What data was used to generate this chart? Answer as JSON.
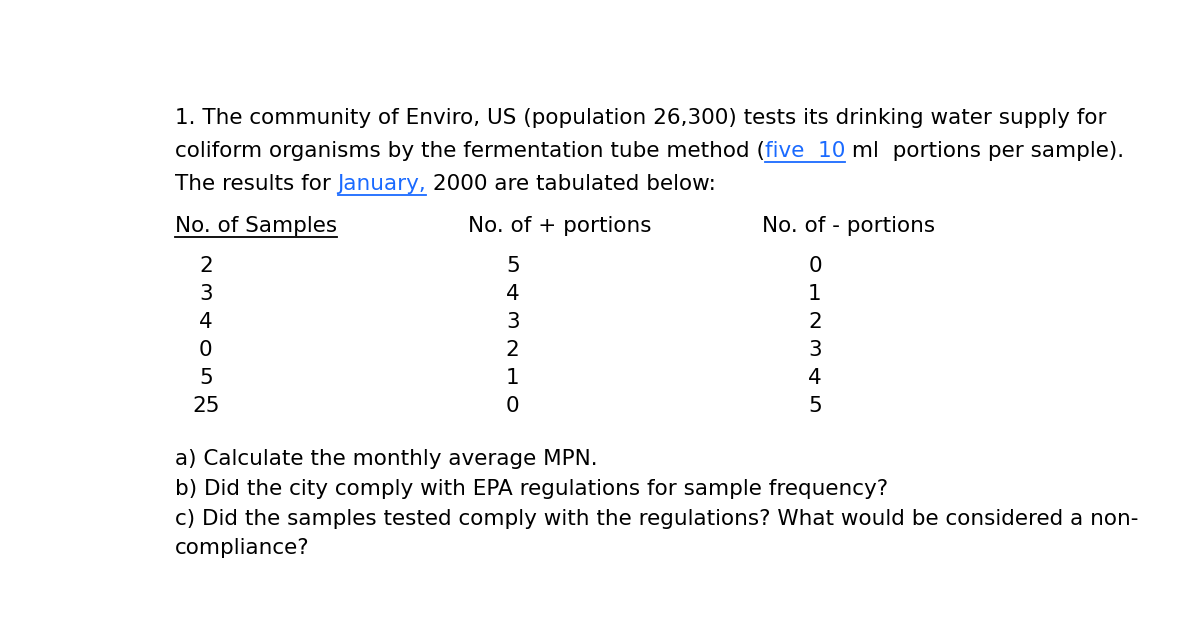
{
  "bg_color": "#ffffff",
  "text_color": "#000000",
  "blue_color": "#1a6aff",
  "font_size_body": 15.5,
  "paragraph1_line1": "1. The community of Enviro, US (population 26,300) tests its drinking water supply for",
  "paragraph1_line2_before": "coliform organisms by the fermentation tube method (",
  "paragraph1_line2_underline": "five  10",
  "paragraph1_line2_after": " ml  portions per sample).",
  "paragraph1_line3_before": "The results for ",
  "paragraph1_line3_underline": "January,",
  "paragraph1_line3_after": " 2000 are tabulated below:",
  "col1_header": "No. of Samples",
  "col2_header": "No. of + portions",
  "col3_header": "No. of - portions",
  "col1_data": [
    "2",
    "3",
    "4",
    "0",
    "5",
    "25"
  ],
  "col2_data": [
    "5",
    "4",
    "3",
    "2",
    "1",
    "0"
  ],
  "col3_data": [
    "0",
    "1",
    "2",
    "3",
    "4",
    "5"
  ],
  "qa": "a) Calculate the monthly average MPN.",
  "qb": "b) Did the city comply with EPA regulations for sample frequency?",
  "qc1": "c) Did the samples tested comply with the regulations? What would be considered a non-",
  "qc2": "compliance?"
}
